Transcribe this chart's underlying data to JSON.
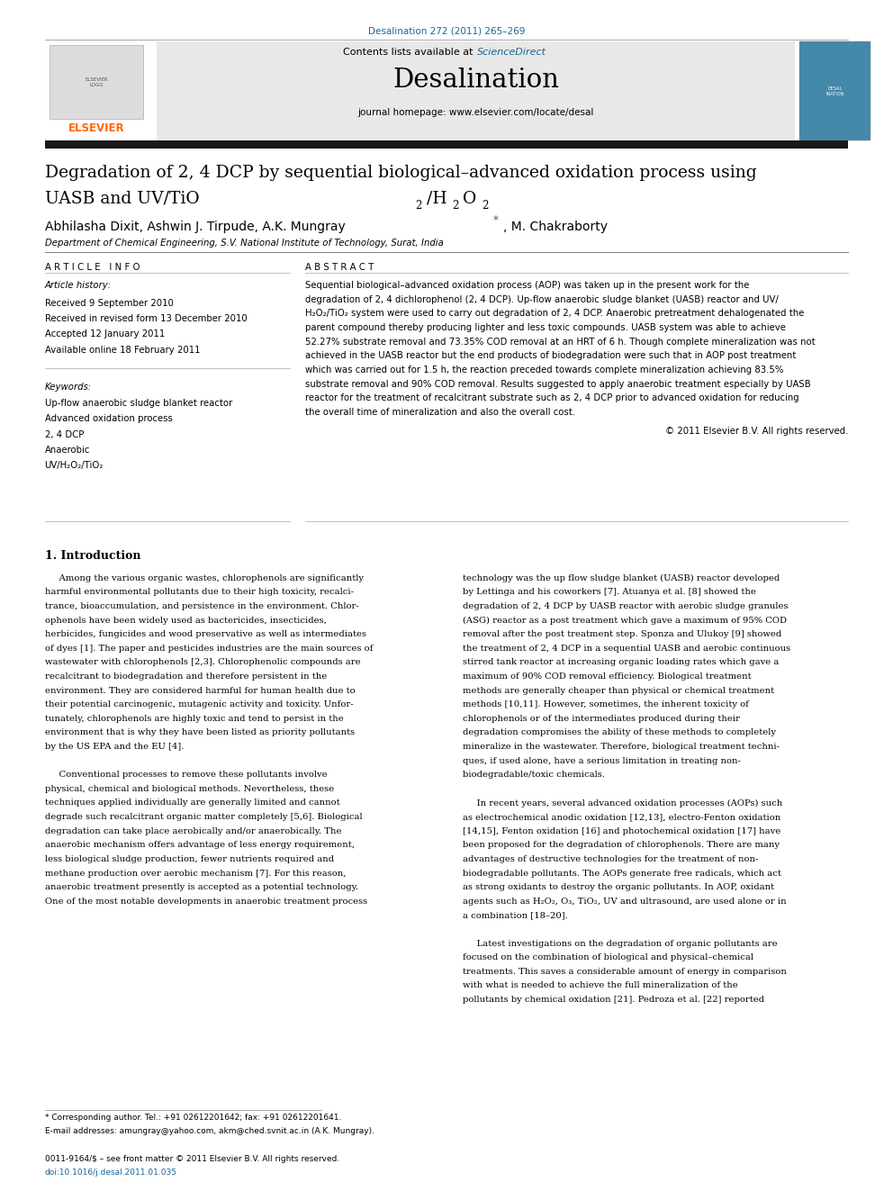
{
  "page_width": 9.92,
  "page_height": 13.23,
  "bg_color": "#ffffff",
  "journal_ref": "Desalination 272 (2011) 265–269",
  "journal_ref_color": "#1a6496",
  "header_bg": "#e8e8e8",
  "contents_text": "Contents lists available at ",
  "sciencedirect_text": "ScienceDirect",
  "sciencedirect_color": "#1a6496",
  "journal_name": "Desalination",
  "journal_homepage": "journal homepage: www.elsevier.com/locate/desal",
  "title_line1": "Degradation of 2, 4 DCP by sequential biological–advanced oxidation process using",
  "title_line2_main": "UASB and UV/TiO",
  "title_line2_sub1": "2",
  "title_line2_h": "/H",
  "title_line2_sub2": "2",
  "title_line2_o": "O",
  "title_line2_sub3": "2",
  "authors": "Abhilasha Dixit, Ashwin J. Tirpude, A.K. Mungray ",
  "authors_star": "*",
  "authors_end": ", M. Chakraborty",
  "affiliation": "Department of Chemical Engineering, S.V. National Institute of Technology, Surat, India",
  "article_info_header": "A R T I C L E   I N F O",
  "article_history_label": "Article history:",
  "received1": "Received 9 September 2010",
  "received2": "Received in revised form 13 December 2010",
  "accepted": "Accepted 12 January 2011",
  "available": "Available online 18 February 2011",
  "keywords_label": "Keywords:",
  "kw1": "Up-flow anaerobic sludge blanket reactor",
  "kw2": "Advanced oxidation process",
  "kw3": "2, 4 DCP",
  "kw4": "Anaerobic",
  "kw5": "UV/H₂O₂/TiO₂",
  "abstract_header": "A B S T R A C T",
  "abstract_lines": [
    "Sequential biological–advanced oxidation process (AOP) was taken up in the present work for the",
    "degradation of 2, 4 dichlorophenol (2, 4 DCP). Up-flow anaerobic sludge blanket (UASB) reactor and UV/",
    "H₂O₂/TiO₂ system were used to carry out degradation of 2, 4 DCP. Anaerobic pretreatment dehalogenated the",
    "parent compound thereby producing lighter and less toxic compounds. UASB system was able to achieve",
    "52.27% substrate removal and 73.35% COD removal at an HRT of 6 h. Though complete mineralization was not",
    "achieved in the UASB reactor but the end products of biodegradation were such that in AOP post treatment",
    "which was carried out for 1.5 h, the reaction preceded towards complete mineralization achieving 83.5%",
    "substrate removal and 90% COD removal. Results suggested to apply anaerobic treatment especially by UASB",
    "reactor for the treatment of recalcitrant substrate such as 2, 4 DCP prior to advanced oxidation for reducing",
    "the overall time of mineralization and also the overall cost."
  ],
  "copyright": "© 2011 Elsevier B.V. All rights reserved.",
  "intro_heading": "1. Introduction",
  "intro_col1_lines": [
    "     Among the various organic wastes, chlorophenols are significantly",
    "harmful environmental pollutants due to their high toxicity, recalci-",
    "trance, bioaccumulation, and persistence in the environment. Chlor-",
    "ophenols have been widely used as bactericides, insecticides,",
    "herbicides, fungicides and wood preservative as well as intermediates",
    "of dyes [1]. The paper and pesticides industries are the main sources of",
    "wastewater with chlorophenols [2,3]. Chlorophenolic compounds are",
    "recalcitrant to biodegradation and therefore persistent in the",
    "environment. They are considered harmful for human health due to",
    "their potential carcinogenic, mutagenic activity and toxicity. Unfor-",
    "tunately, chlorophenols are highly toxic and tend to persist in the",
    "environment that is why they have been listed as priority pollutants",
    "by the US EPA and the EU [4].",
    "",
    "     Conventional processes to remove these pollutants involve",
    "physical, chemical and biological methods. Nevertheless, these",
    "techniques applied individually are generally limited and cannot",
    "degrade such recalcitrant organic matter completely [5,6]. Biological",
    "degradation can take place aerobically and/or anaerobically. The",
    "anaerobic mechanism offers advantage of less energy requirement,",
    "less biological sludge production, fewer nutrients required and",
    "methane production over aerobic mechanism [7]. For this reason,",
    "anaerobic treatment presently is accepted as a potential technology.",
    "One of the most notable developments in anaerobic treatment process"
  ],
  "intro_col2_lines": [
    "technology was the up flow sludge blanket (UASB) reactor developed",
    "by Lettinga and his coworkers [7]. Atuanya et al. [8] showed the",
    "degradation of 2, 4 DCP by UASB reactor with aerobic sludge granules",
    "(ASG) reactor as a post treatment which gave a maximum of 95% COD",
    "removal after the post treatment step. Sponza and Ulukoy [9] showed",
    "the treatment of 2, 4 DCP in a sequential UASB and aerobic continuous",
    "stirred tank reactor at increasing organic loading rates which gave a",
    "maximum of 90% COD removal efficiency. Biological treatment",
    "methods are generally cheaper than physical or chemical treatment",
    "methods [10,11]. However, sometimes, the inherent toxicity of",
    "chlorophenols or of the intermediates produced during their",
    "degradation compromises the ability of these methods to completely",
    "mineralize in the wastewater. Therefore, biological treatment techni-",
    "ques, if used alone, have a serious limitation in treating non-",
    "biodegradable/toxic chemicals.",
    "",
    "     In recent years, several advanced oxidation processes (AOPs) such",
    "as electrochemical anodic oxidation [12,13], electro-Fenton oxidation",
    "[14,15], Fenton oxidation [16] and photochemical oxidation [17] have",
    "been proposed for the degradation of chlorophenols. There are many",
    "advantages of destructive technologies for the treatment of non-",
    "biodegradable pollutants. The AOPs generate free radicals, which act",
    "as strong oxidants to destroy the organic pollutants. In AOP, oxidant",
    "agents such as H₂O₂, O₃, TiO₂, UV and ultrasound, are used alone or in",
    "a combination [18–20].",
    "",
    "     Latest investigations on the degradation of organic pollutants are",
    "focused on the combination of biological and physical–chemical",
    "treatments. This saves a considerable amount of energy in comparison",
    "with what is needed to achieve the full mineralization of the",
    "pollutants by chemical oxidation [21]. Pedroza et al. [22] reported"
  ],
  "footnote1": "* Corresponding author. Tel.: +91 02612201642; fax: +91 02612201641.",
  "footnote2": "E-mail addresses: amungray@yahoo.com, akm@ched.svnit.ac.in (A.K. Mungray).",
  "issn_line": "0011-9164/$ – see front matter © 2011 Elsevier B.V. All rights reserved.",
  "doi_line": "doi:10.1016/j.desal.2011.01.035",
  "link_color": "#1a6496",
  "text_color": "#000000",
  "thick_bar_color": "#1a1a1a",
  "elsevier_orange": "#FF6600"
}
